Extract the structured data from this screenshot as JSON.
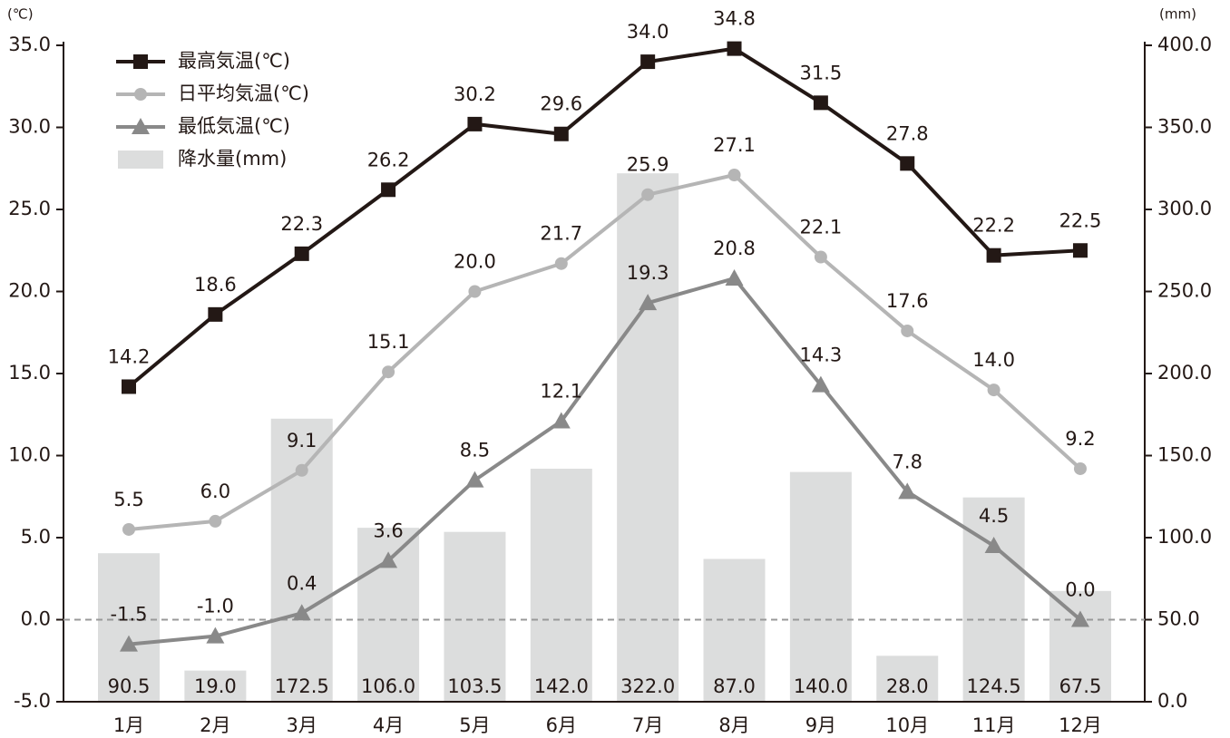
{
  "chart_data": {
    "type": "combo",
    "y_unit_label": "(℃)",
    "y2_unit_label": "(mm)",
    "categories": [
      "1月",
      "2月",
      "3月",
      "4月",
      "5月",
      "6月",
      "7月",
      "8月",
      "9月",
      "10月",
      "11月",
      "12月"
    ],
    "ylim": [
      -5,
      35
    ],
    "yticks": [
      {
        "value": -5,
        "label": "-5.0"
      },
      {
        "value": 0,
        "label": "0.0"
      },
      {
        "value": 5,
        "label": "5.0"
      },
      {
        "value": 10,
        "label": "10.0"
      },
      {
        "value": 15,
        "label": "15.0"
      },
      {
        "value": 20,
        "label": "20.0"
      },
      {
        "value": 25,
        "label": "25.0"
      },
      {
        "value": 30,
        "label": "30.0"
      },
      {
        "value": 35,
        "label": "35.0"
      }
    ],
    "y2lim": [
      0,
      400
    ],
    "y2ticks": [
      {
        "value": 0,
        "label": "0.0"
      },
      {
        "value": 50,
        "label": "50.0"
      },
      {
        "value": 100,
        "label": "100.0"
      },
      {
        "value": 150,
        "label": "150.0"
      },
      {
        "value": 200,
        "label": "200.0"
      },
      {
        "value": 250,
        "label": "250.0"
      },
      {
        "value": 300,
        "label": "300.0"
      },
      {
        "value": 350,
        "label": "350.0"
      },
      {
        "value": 400,
        "label": "400.0"
      }
    ],
    "zero_line": true,
    "legend": "top-left",
    "series": [
      {
        "name": "最高気温(℃)",
        "type": "line",
        "marker": "square",
        "color": "#231815",
        "values": [
          14.2,
          18.6,
          22.3,
          26.2,
          30.2,
          29.6,
          34.0,
          34.8,
          31.5,
          27.8,
          22.2,
          22.5
        ],
        "value_labels": [
          "14.2",
          "18.6",
          "22.3",
          "26.2",
          "30.2",
          "29.6",
          "34.0",
          "34.8",
          "31.5",
          "27.8",
          "22.2",
          "22.5"
        ]
      },
      {
        "name": "日平均気温(℃)",
        "type": "line",
        "marker": "circle",
        "color": "#b5b5b5",
        "values": [
          5.5,
          6.0,
          9.1,
          15.1,
          20.0,
          21.7,
          25.9,
          27.1,
          22.1,
          17.6,
          14.0,
          9.2
        ],
        "value_labels": [
          "5.5",
          "6.0",
          "9.1",
          "15.1",
          "20.0",
          "21.7",
          "25.9",
          "27.1",
          "22.1",
          "17.6",
          "14.0",
          "9.2"
        ]
      },
      {
        "name": "最低気温(℃)",
        "type": "line",
        "marker": "triangle",
        "color": "#898989",
        "values": [
          -1.5,
          -1.0,
          0.4,
          3.6,
          8.5,
          12.1,
          19.3,
          20.8,
          14.3,
          7.8,
          4.5,
          0.0
        ],
        "value_labels": [
          "-1.5",
          "-1.0",
          "0.4",
          "3.6",
          "8.5",
          "12.1",
          "19.3",
          "20.8",
          "14.3",
          "7.8",
          "4.5",
          "0.0"
        ]
      },
      {
        "name": "降水量(mm)",
        "type": "bar",
        "axis": "y2",
        "color": "#dcdddd",
        "values": [
          90.5,
          19.0,
          172.5,
          106.0,
          103.5,
          142.0,
          322.0,
          87.0,
          140.0,
          28.0,
          124.5,
          67.5
        ],
        "value_labels": [
          "90.5",
          "19.0",
          "172.5",
          "106.0",
          "103.5",
          "142.0",
          "322.0",
          "87.0",
          "140.0",
          "28.0",
          "124.5",
          "67.5"
        ]
      }
    ]
  }
}
